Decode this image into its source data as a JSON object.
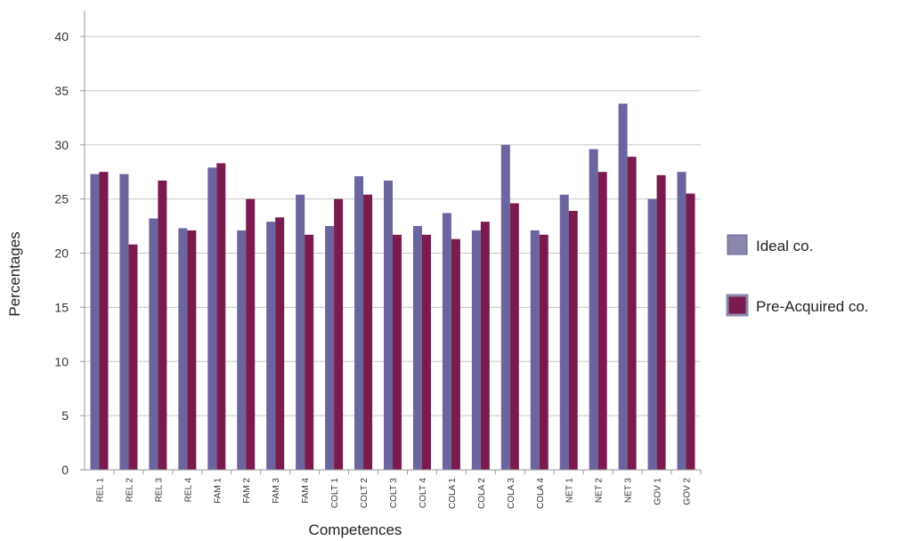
{
  "chart_data": {
    "type": "bar",
    "title": "",
    "xlabel": "Competences",
    "ylabel": "Percentages",
    "ylim": [
      0,
      40
    ],
    "yticks": [
      0,
      5,
      10,
      15,
      20,
      25,
      30,
      35,
      40
    ],
    "grid": true,
    "legend_position": "right",
    "categories": [
      "REL 1",
      "REL 2",
      "REL 3",
      "REL 4",
      "FAM 1",
      "FAM 2",
      "FAM 3",
      "FAM 4",
      "COLT 1",
      "COLT 2",
      "COLT 3",
      "COLT 4",
      "COLA 1",
      "COLA 2",
      "COLA 3",
      "COLA 4",
      "NET 1",
      "NET 2",
      "NET 3",
      "GOV 1",
      "GOV 2"
    ],
    "series": [
      {
        "name": "Ideal co.",
        "color": "#6a659e",
        "values": [
          27.3,
          27.3,
          23.2,
          22.3,
          27.9,
          22.1,
          22.9,
          25.4,
          22.5,
          27.1,
          26.7,
          22.5,
          23.7,
          22.1,
          30.0,
          22.1,
          25.4,
          29.6,
          33.8,
          25.0,
          27.5
        ]
      },
      {
        "name": "Pre-Acquired co.",
        "color": "#7b1a4e",
        "values": [
          27.5,
          20.8,
          26.7,
          22.1,
          28.3,
          25.0,
          23.3,
          21.7,
          25.0,
          25.4,
          21.7,
          21.7,
          21.3,
          22.9,
          24.6,
          21.7,
          23.9,
          27.5,
          28.9,
          27.2,
          25.5
        ]
      }
    ]
  }
}
